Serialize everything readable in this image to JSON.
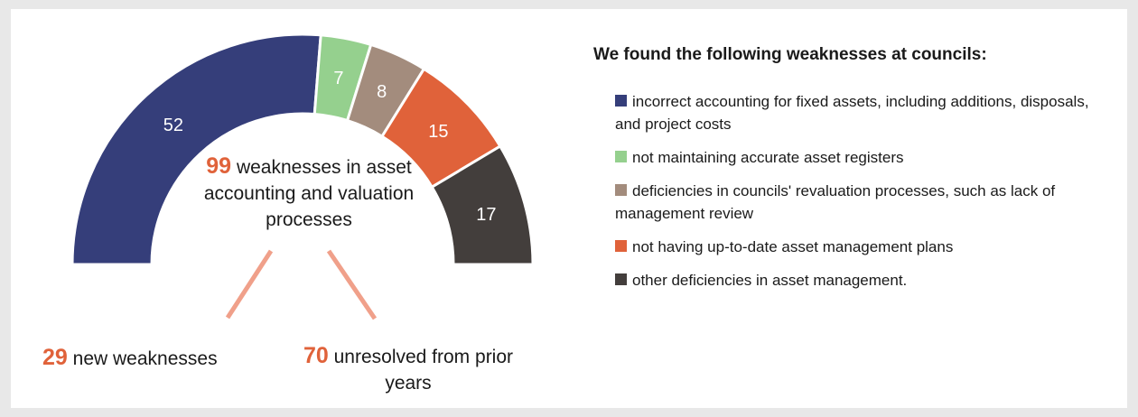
{
  "chart_data": {
    "type": "pie",
    "variant": "half-donut",
    "title": "",
    "total": {
      "value": "99",
      "label": "weaknesses in asset accounting and valuation processes"
    },
    "segments": [
      {
        "value": 52,
        "color": "#353e7a"
      },
      {
        "value": 7,
        "color": "#95d08e"
      },
      {
        "value": 8,
        "color": "#a38c7d"
      },
      {
        "value": 15,
        "color": "#e0623a"
      },
      {
        "value": 17,
        "color": "#433e3c"
      }
    ],
    "breakdown": [
      {
        "value": "29",
        "label": "new weaknesses"
      },
      {
        "value": "70",
        "label": "unresolved from prior years"
      }
    ],
    "breakdown_line_color": "#f0a08a",
    "legend": {
      "title": "We found the following weaknesses at councils:",
      "items": [
        {
          "label": "incorrect accounting for fixed assets, including additions, disposals, and project costs",
          "color": "#353e7a"
        },
        {
          "label": "not maintaining accurate asset registers",
          "color": "#95d08e"
        },
        {
          "label": "deficiencies in councils' revaluation processes, such as lack of management review",
          "color": "#a38c7d"
        },
        {
          "label": "not having up-to-date asset management plans",
          "color": "#e0623a"
        },
        {
          "label": "other deficiencies in asset management.",
          "color": "#433e3c"
        }
      ]
    }
  }
}
